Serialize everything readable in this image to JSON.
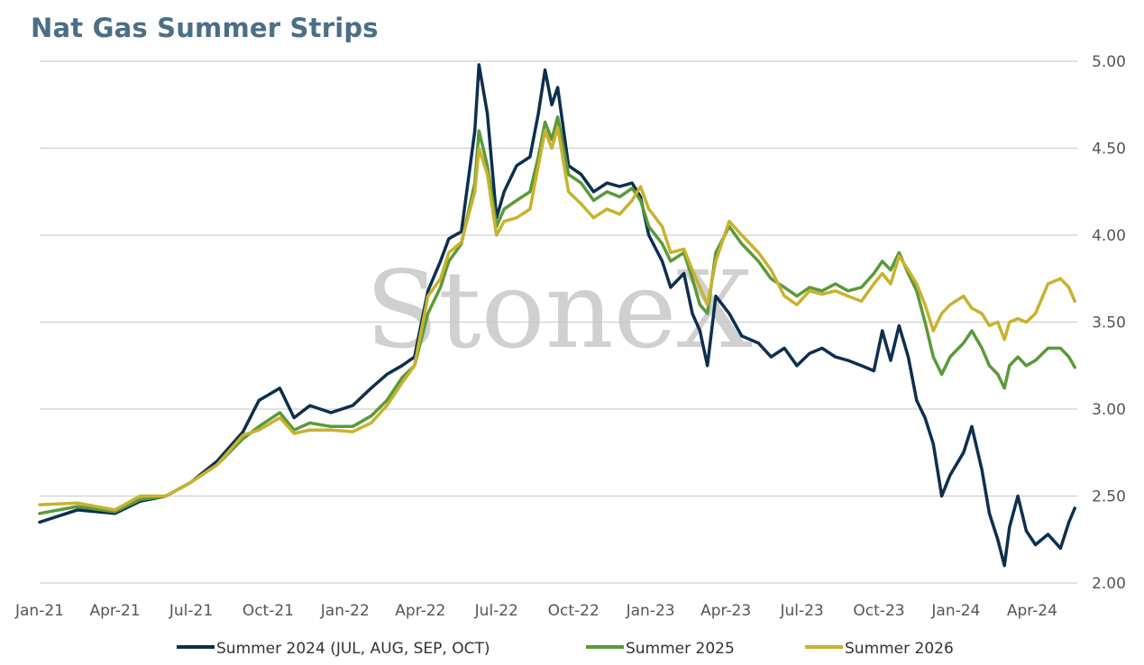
{
  "chart_data": {
    "type": "line",
    "title": "Nat Gas Summer Strips",
    "xlabel": "",
    "ylabel": "",
    "watermark": "StoneX",
    "xlim": [
      "2021-01-01",
      "2024-05-25"
    ],
    "ylim": [
      2.0,
      5.0
    ],
    "y_ticks": [
      "2.00",
      "2.50",
      "3.00",
      "3.50",
      "4.00",
      "4.50",
      "5.00"
    ],
    "x_ticks": [
      {
        "date": "2021-01-01",
        "label": "Jan-21"
      },
      {
        "date": "2021-04-01",
        "label": "Apr-21"
      },
      {
        "date": "2021-07-01",
        "label": "Jul-21"
      },
      {
        "date": "2021-10-01",
        "label": "Oct-21"
      },
      {
        "date": "2022-01-01",
        "label": "Jan-22"
      },
      {
        "date": "2022-04-01",
        "label": "Apr-22"
      },
      {
        "date": "2022-07-01",
        "label": "Jul-22"
      },
      {
        "date": "2022-10-01",
        "label": "Oct-22"
      },
      {
        "date": "2023-01-01",
        "label": "Jan-23"
      },
      {
        "date": "2023-04-01",
        "label": "Apr-23"
      },
      {
        "date": "2023-07-01",
        "label": "Jul-23"
      },
      {
        "date": "2023-10-01",
        "label": "Oct-23"
      },
      {
        "date": "2024-01-01",
        "label": "Jan-24"
      },
      {
        "date": "2024-04-01",
        "label": "Apr-24"
      }
    ],
    "grid": "horizontal",
    "y_axis_side": "right",
    "legend_position": "bottom",
    "colors": {
      "summer2024": "#0d2f4f",
      "summer2025": "#5a9a3a",
      "summer2026": "#c9b22e",
      "grid": "#d0d0d0"
    },
    "series": [
      {
        "name": "Summer 2024 (JUL, AUG, SEP, OCT)",
        "color": "#0d2f4f",
        "points": [
          [
            "2021-01-01",
            2.35
          ],
          [
            "2021-02-15",
            2.42
          ],
          [
            "2021-04-01",
            2.4
          ],
          [
            "2021-05-01",
            2.47
          ],
          [
            "2021-06-01",
            2.5
          ],
          [
            "2021-07-01",
            2.58
          ],
          [
            "2021-08-01",
            2.7
          ],
          [
            "2021-09-01",
            2.87
          ],
          [
            "2021-09-20",
            3.05
          ],
          [
            "2021-10-15",
            3.12
          ],
          [
            "2021-11-01",
            2.95
          ],
          [
            "2021-11-20",
            3.02
          ],
          [
            "2021-12-15",
            2.98
          ],
          [
            "2022-01-10",
            3.02
          ],
          [
            "2022-02-01",
            3.12
          ],
          [
            "2022-02-20",
            3.2
          ],
          [
            "2022-03-10",
            3.25
          ],
          [
            "2022-03-25",
            3.3
          ],
          [
            "2022-04-10",
            3.68
          ],
          [
            "2022-04-25",
            3.85
          ],
          [
            "2022-05-05",
            3.98
          ],
          [
            "2022-05-20",
            4.02
          ],
          [
            "2022-06-05",
            4.6
          ],
          [
            "2022-06-10",
            4.98
          ],
          [
            "2022-06-20",
            4.7
          ],
          [
            "2022-07-01",
            4.1
          ],
          [
            "2022-07-10",
            4.25
          ],
          [
            "2022-07-25",
            4.4
          ],
          [
            "2022-08-10",
            4.45
          ],
          [
            "2022-08-20",
            4.7
          ],
          [
            "2022-08-28",
            4.95
          ],
          [
            "2022-09-05",
            4.75
          ],
          [
            "2022-09-12",
            4.85
          ],
          [
            "2022-09-25",
            4.4
          ],
          [
            "2022-10-10",
            4.35
          ],
          [
            "2022-10-25",
            4.25
          ],
          [
            "2022-11-10",
            4.3
          ],
          [
            "2022-11-25",
            4.28
          ],
          [
            "2022-12-10",
            4.3
          ],
          [
            "2022-12-20",
            4.22
          ],
          [
            "2022-12-30",
            4.0
          ],
          [
            "2023-01-15",
            3.85
          ],
          [
            "2023-01-25",
            3.7
          ],
          [
            "2023-02-10",
            3.78
          ],
          [
            "2023-02-20",
            3.55
          ],
          [
            "2023-03-01",
            3.45
          ],
          [
            "2023-03-10",
            3.25
          ],
          [
            "2023-03-20",
            3.65
          ],
          [
            "2023-04-05",
            3.55
          ],
          [
            "2023-04-20",
            3.42
          ],
          [
            "2023-05-10",
            3.38
          ],
          [
            "2023-05-25",
            3.3
          ],
          [
            "2023-06-10",
            3.35
          ],
          [
            "2023-06-25",
            3.25
          ],
          [
            "2023-07-10",
            3.32
          ],
          [
            "2023-07-25",
            3.35
          ],
          [
            "2023-08-10",
            3.3
          ],
          [
            "2023-08-25",
            3.28
          ],
          [
            "2023-09-10",
            3.25
          ],
          [
            "2023-09-25",
            3.22
          ],
          [
            "2023-10-05",
            3.45
          ],
          [
            "2023-10-15",
            3.28
          ],
          [
            "2023-10-25",
            3.48
          ],
          [
            "2023-11-05",
            3.3
          ],
          [
            "2023-11-15",
            3.05
          ],
          [
            "2023-11-25",
            2.95
          ],
          [
            "2023-12-05",
            2.8
          ],
          [
            "2023-12-15",
            2.5
          ],
          [
            "2023-12-25",
            2.62
          ],
          [
            "2024-01-10",
            2.75
          ],
          [
            "2024-01-20",
            2.9
          ],
          [
            "2024-02-01",
            2.65
          ],
          [
            "2024-02-10",
            2.4
          ],
          [
            "2024-02-20",
            2.25
          ],
          [
            "2024-02-28",
            2.1
          ],
          [
            "2024-03-05",
            2.32
          ],
          [
            "2024-03-15",
            2.5
          ],
          [
            "2024-03-25",
            2.3
          ],
          [
            "2024-04-05",
            2.22
          ],
          [
            "2024-04-20",
            2.28
          ],
          [
            "2024-05-05",
            2.2
          ],
          [
            "2024-05-15",
            2.35
          ],
          [
            "2024-05-22",
            2.43
          ]
        ]
      },
      {
        "name": "Summer 2025",
        "color": "#5a9a3a",
        "points": [
          [
            "2021-01-01",
            2.4
          ],
          [
            "2021-02-15",
            2.44
          ],
          [
            "2021-04-01",
            2.41
          ],
          [
            "2021-05-01",
            2.48
          ],
          [
            "2021-06-01",
            2.5
          ],
          [
            "2021-07-01",
            2.58
          ],
          [
            "2021-08-01",
            2.68
          ],
          [
            "2021-09-01",
            2.83
          ],
          [
            "2021-09-20",
            2.9
          ],
          [
            "2021-10-15",
            2.98
          ],
          [
            "2021-11-01",
            2.88
          ],
          [
            "2021-11-20",
            2.92
          ],
          [
            "2021-12-15",
            2.9
          ],
          [
            "2022-01-10",
            2.9
          ],
          [
            "2022-02-01",
            2.96
          ],
          [
            "2022-02-20",
            3.05
          ],
          [
            "2022-03-10",
            3.18
          ],
          [
            "2022-03-25",
            3.25
          ],
          [
            "2022-04-10",
            3.55
          ],
          [
            "2022-04-25",
            3.7
          ],
          [
            "2022-05-05",
            3.85
          ],
          [
            "2022-05-20",
            3.95
          ],
          [
            "2022-06-05",
            4.3
          ],
          [
            "2022-06-10",
            4.6
          ],
          [
            "2022-06-20",
            4.4
          ],
          [
            "2022-07-01",
            4.05
          ],
          [
            "2022-07-10",
            4.15
          ],
          [
            "2022-07-25",
            4.2
          ],
          [
            "2022-08-10",
            4.25
          ],
          [
            "2022-08-20",
            4.45
          ],
          [
            "2022-08-28",
            4.65
          ],
          [
            "2022-09-05",
            4.55
          ],
          [
            "2022-09-12",
            4.68
          ],
          [
            "2022-09-25",
            4.35
          ],
          [
            "2022-10-10",
            4.3
          ],
          [
            "2022-10-25",
            4.2
          ],
          [
            "2022-11-10",
            4.25
          ],
          [
            "2022-11-25",
            4.22
          ],
          [
            "2022-12-10",
            4.27
          ],
          [
            "2022-12-20",
            4.2
          ],
          [
            "2022-12-30",
            4.05
          ],
          [
            "2023-01-15",
            3.95
          ],
          [
            "2023-01-25",
            3.85
          ],
          [
            "2023-02-10",
            3.9
          ],
          [
            "2023-02-20",
            3.75
          ],
          [
            "2023-03-01",
            3.6
          ],
          [
            "2023-03-10",
            3.55
          ],
          [
            "2023-03-20",
            3.9
          ],
          [
            "2023-04-05",
            4.05
          ],
          [
            "2023-04-20",
            3.95
          ],
          [
            "2023-05-10",
            3.85
          ],
          [
            "2023-05-25",
            3.75
          ],
          [
            "2023-06-10",
            3.7
          ],
          [
            "2023-06-25",
            3.65
          ],
          [
            "2023-07-10",
            3.7
          ],
          [
            "2023-07-25",
            3.68
          ],
          [
            "2023-08-10",
            3.72
          ],
          [
            "2023-08-25",
            3.68
          ],
          [
            "2023-09-10",
            3.7
          ],
          [
            "2023-09-25",
            3.78
          ],
          [
            "2023-10-05",
            3.85
          ],
          [
            "2023-10-15",
            3.8
          ],
          [
            "2023-10-25",
            3.9
          ],
          [
            "2023-11-05",
            3.78
          ],
          [
            "2023-11-15",
            3.68
          ],
          [
            "2023-11-25",
            3.5
          ],
          [
            "2023-12-05",
            3.3
          ],
          [
            "2023-12-15",
            3.2
          ],
          [
            "2023-12-25",
            3.3
          ],
          [
            "2024-01-10",
            3.38
          ],
          [
            "2024-01-20",
            3.45
          ],
          [
            "2024-02-01",
            3.35
          ],
          [
            "2024-02-10",
            3.25
          ],
          [
            "2024-02-20",
            3.2
          ],
          [
            "2024-02-28",
            3.12
          ],
          [
            "2024-03-05",
            3.25
          ],
          [
            "2024-03-15",
            3.3
          ],
          [
            "2024-03-25",
            3.25
          ],
          [
            "2024-04-05",
            3.28
          ],
          [
            "2024-04-20",
            3.35
          ],
          [
            "2024-05-05",
            3.35
          ],
          [
            "2024-05-15",
            3.3
          ],
          [
            "2024-05-22",
            3.24
          ]
        ]
      },
      {
        "name": "Summer 2026",
        "color": "#c9b22e",
        "points": [
          [
            "2021-01-01",
            2.45
          ],
          [
            "2021-02-15",
            2.46
          ],
          [
            "2021-04-01",
            2.42
          ],
          [
            "2021-05-01",
            2.5
          ],
          [
            "2021-06-01",
            2.5
          ],
          [
            "2021-07-01",
            2.58
          ],
          [
            "2021-08-01",
            2.68
          ],
          [
            "2021-09-01",
            2.85
          ],
          [
            "2021-09-20",
            2.88
          ],
          [
            "2021-10-15",
            2.95
          ],
          [
            "2021-11-01",
            2.86
          ],
          [
            "2021-11-20",
            2.88
          ],
          [
            "2021-12-15",
            2.88
          ],
          [
            "2022-01-10",
            2.87
          ],
          [
            "2022-02-01",
            2.92
          ],
          [
            "2022-02-20",
            3.02
          ],
          [
            "2022-03-10",
            3.15
          ],
          [
            "2022-03-25",
            3.25
          ],
          [
            "2022-04-10",
            3.65
          ],
          [
            "2022-04-25",
            3.75
          ],
          [
            "2022-05-05",
            3.9
          ],
          [
            "2022-05-20",
            3.96
          ],
          [
            "2022-06-05",
            4.25
          ],
          [
            "2022-06-10",
            4.5
          ],
          [
            "2022-06-20",
            4.35
          ],
          [
            "2022-07-01",
            4.0
          ],
          [
            "2022-07-10",
            4.08
          ],
          [
            "2022-07-25",
            4.1
          ],
          [
            "2022-08-10",
            4.15
          ],
          [
            "2022-08-20",
            4.4
          ],
          [
            "2022-08-28",
            4.6
          ],
          [
            "2022-09-05",
            4.5
          ],
          [
            "2022-09-12",
            4.62
          ],
          [
            "2022-09-25",
            4.25
          ],
          [
            "2022-10-10",
            4.18
          ],
          [
            "2022-10-25",
            4.1
          ],
          [
            "2022-11-10",
            4.15
          ],
          [
            "2022-11-25",
            4.12
          ],
          [
            "2022-12-10",
            4.2
          ],
          [
            "2022-12-20",
            4.28
          ],
          [
            "2022-12-30",
            4.15
          ],
          [
            "2023-01-15",
            4.05
          ],
          [
            "2023-01-25",
            3.9
          ],
          [
            "2023-02-10",
            3.92
          ],
          [
            "2023-02-20",
            3.8
          ],
          [
            "2023-03-01",
            3.7
          ],
          [
            "2023-03-10",
            3.6
          ],
          [
            "2023-03-20",
            3.85
          ],
          [
            "2023-04-05",
            4.08
          ],
          [
            "2023-04-20",
            4.0
          ],
          [
            "2023-05-10",
            3.9
          ],
          [
            "2023-05-25",
            3.8
          ],
          [
            "2023-06-10",
            3.65
          ],
          [
            "2023-06-25",
            3.6
          ],
          [
            "2023-07-10",
            3.68
          ],
          [
            "2023-07-25",
            3.66
          ],
          [
            "2023-08-10",
            3.68
          ],
          [
            "2023-08-25",
            3.65
          ],
          [
            "2023-09-10",
            3.62
          ],
          [
            "2023-09-25",
            3.72
          ],
          [
            "2023-10-05",
            3.78
          ],
          [
            "2023-10-15",
            3.72
          ],
          [
            "2023-10-25",
            3.88
          ],
          [
            "2023-11-05",
            3.8
          ],
          [
            "2023-11-15",
            3.72
          ],
          [
            "2023-11-25",
            3.6
          ],
          [
            "2023-12-05",
            3.45
          ],
          [
            "2023-12-15",
            3.55
          ],
          [
            "2023-12-25",
            3.6
          ],
          [
            "2024-01-10",
            3.65
          ],
          [
            "2024-01-20",
            3.58
          ],
          [
            "2024-02-01",
            3.55
          ],
          [
            "2024-02-10",
            3.48
          ],
          [
            "2024-02-20",
            3.5
          ],
          [
            "2024-02-28",
            3.4
          ],
          [
            "2024-03-05",
            3.5
          ],
          [
            "2024-03-15",
            3.52
          ],
          [
            "2024-03-25",
            3.5
          ],
          [
            "2024-04-05",
            3.55
          ],
          [
            "2024-04-20",
            3.72
          ],
          [
            "2024-05-05",
            3.75
          ],
          [
            "2024-05-15",
            3.7
          ],
          [
            "2024-05-22",
            3.62
          ]
        ]
      }
    ]
  }
}
